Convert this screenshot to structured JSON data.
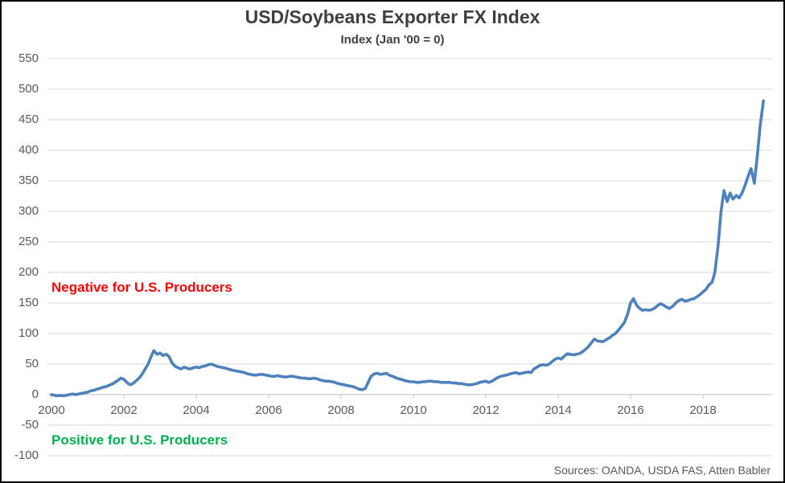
{
  "header": {
    "title": "USD/Soybeans Exporter FX Index",
    "subtitle": "Index (Jan '00 = 0)"
  },
  "annotations": {
    "negative": "Negative for U.S. Producers",
    "positive": "Positive for U.S. Producers"
  },
  "source": "Sources: OANDA, USDA FAS, Atten Babler",
  "colors": {
    "line": "#4F81BD",
    "negative_text": "#FF0000",
    "positive_text": "#00B050",
    "axis_text": "#595959",
    "gridline": "#D9D9D9",
    "axis_line": "#BFBFBF",
    "title_text": "#3F3F3F"
  },
  "chart_data": {
    "type": "line",
    "title": "USD/Soybeans Exporter FX Index",
    "subtitle": "Index (Jan '00 = 0)",
    "series_name": "USD/Soybeans Exporter FX Index",
    "xlabel": "",
    "ylabel": "",
    "grid": true,
    "legend": false,
    "xlim": [
      1999.9,
      2019.95
    ],
    "ylim": [
      -100,
      550
    ],
    "x_ticks": [
      2000,
      2002,
      2004,
      2006,
      2008,
      2010,
      2012,
      2014,
      2016,
      2018
    ],
    "y_ticks": [
      550,
      500,
      450,
      400,
      350,
      300,
      250,
      200,
      150,
      100,
      50,
      0,
      -50,
      -100
    ],
    "points": [
      [
        2000.0,
        0
      ],
      [
        2000.08,
        -1
      ],
      [
        2000.17,
        -2
      ],
      [
        2000.25,
        -1
      ],
      [
        2000.33,
        -2
      ],
      [
        2000.42,
        -1
      ],
      [
        2000.5,
        0
      ],
      [
        2000.58,
        1
      ],
      [
        2000.67,
        0
      ],
      [
        2000.75,
        1
      ],
      [
        2000.83,
        2
      ],
      [
        2000.92,
        3
      ],
      [
        2001.0,
        4
      ],
      [
        2001.08,
        6
      ],
      [
        2001.17,
        7
      ],
      [
        2001.25,
        9
      ],
      [
        2001.33,
        10
      ],
      [
        2001.42,
        12
      ],
      [
        2001.5,
        13
      ],
      [
        2001.58,
        15
      ],
      [
        2001.67,
        17
      ],
      [
        2001.75,
        20
      ],
      [
        2001.83,
        23
      ],
      [
        2001.92,
        27
      ],
      [
        2002.0,
        25
      ],
      [
        2002.08,
        20
      ],
      [
        2002.17,
        16
      ],
      [
        2002.25,
        18
      ],
      [
        2002.33,
        22
      ],
      [
        2002.42,
        27
      ],
      [
        2002.5,
        33
      ],
      [
        2002.58,
        41
      ],
      [
        2002.67,
        50
      ],
      [
        2002.75,
        62
      ],
      [
        2002.83,
        72
      ],
      [
        2002.92,
        66
      ],
      [
        2003.0,
        68
      ],
      [
        2003.08,
        64
      ],
      [
        2003.17,
        66
      ],
      [
        2003.25,
        62
      ],
      [
        2003.33,
        52
      ],
      [
        2003.42,
        46
      ],
      [
        2003.5,
        44
      ],
      [
        2003.58,
        42
      ],
      [
        2003.67,
        45
      ],
      [
        2003.75,
        43
      ],
      [
        2003.83,
        42
      ],
      [
        2003.92,
        44
      ],
      [
        2004.0,
        45
      ],
      [
        2004.08,
        44
      ],
      [
        2004.17,
        46
      ],
      [
        2004.25,
        47
      ],
      [
        2004.33,
        49
      ],
      [
        2004.42,
        50
      ],
      [
        2004.5,
        48
      ],
      [
        2004.58,
        46
      ],
      [
        2004.67,
        45
      ],
      [
        2004.75,
        44
      ],
      [
        2004.83,
        43
      ],
      [
        2004.92,
        41
      ],
      [
        2005.0,
        40
      ],
      [
        2005.08,
        39
      ],
      [
        2005.17,
        38
      ],
      [
        2005.25,
        37
      ],
      [
        2005.33,
        36
      ],
      [
        2005.42,
        34
      ],
      [
        2005.5,
        33
      ],
      [
        2005.58,
        32
      ],
      [
        2005.67,
        32
      ],
      [
        2005.75,
        33
      ],
      [
        2005.83,
        33
      ],
      [
        2005.92,
        32
      ],
      [
        2006.0,
        31
      ],
      [
        2006.08,
        30
      ],
      [
        2006.17,
        30
      ],
      [
        2006.25,
        31
      ],
      [
        2006.33,
        30
      ],
      [
        2006.42,
        29
      ],
      [
        2006.5,
        29
      ],
      [
        2006.58,
        30
      ],
      [
        2006.67,
        30
      ],
      [
        2006.75,
        29
      ],
      [
        2006.83,
        28
      ],
      [
        2006.92,
        27
      ],
      [
        2007.0,
        27
      ],
      [
        2007.08,
        26
      ],
      [
        2007.17,
        26
      ],
      [
        2007.25,
        27
      ],
      [
        2007.33,
        26
      ],
      [
        2007.42,
        24
      ],
      [
        2007.5,
        23
      ],
      [
        2007.58,
        22
      ],
      [
        2007.67,
        22
      ],
      [
        2007.75,
        21
      ],
      [
        2007.83,
        20
      ],
      [
        2007.92,
        18
      ],
      [
        2008.0,
        17
      ],
      [
        2008.08,
        16
      ],
      [
        2008.17,
        15
      ],
      [
        2008.25,
        14
      ],
      [
        2008.33,
        13
      ],
      [
        2008.42,
        11
      ],
      [
        2008.5,
        9
      ],
      [
        2008.58,
        8
      ],
      [
        2008.67,
        10
      ],
      [
        2008.75,
        20
      ],
      [
        2008.83,
        30
      ],
      [
        2008.92,
        34
      ],
      [
        2009.0,
        35
      ],
      [
        2009.08,
        33
      ],
      [
        2009.17,
        34
      ],
      [
        2009.25,
        35
      ],
      [
        2009.33,
        32
      ],
      [
        2009.42,
        30
      ],
      [
        2009.5,
        28
      ],
      [
        2009.58,
        26
      ],
      [
        2009.67,
        25
      ],
      [
        2009.75,
        23
      ],
      [
        2009.83,
        22
      ],
      [
        2009.92,
        21
      ],
      [
        2010.0,
        21
      ],
      [
        2010.08,
        20
      ],
      [
        2010.17,
        20
      ],
      [
        2010.25,
        21
      ],
      [
        2010.33,
        21
      ],
      [
        2010.42,
        22
      ],
      [
        2010.5,
        22
      ],
      [
        2010.58,
        21
      ],
      [
        2010.67,
        21
      ],
      [
        2010.75,
        20
      ],
      [
        2010.83,
        20
      ],
      [
        2010.92,
        20
      ],
      [
        2011.0,
        20
      ],
      [
        2011.08,
        19
      ],
      [
        2011.17,
        19
      ],
      [
        2011.25,
        18
      ],
      [
        2011.33,
        18
      ],
      [
        2011.42,
        17
      ],
      [
        2011.5,
        16
      ],
      [
        2011.58,
        16
      ],
      [
        2011.67,
        17
      ],
      [
        2011.75,
        18
      ],
      [
        2011.83,
        20
      ],
      [
        2011.92,
        21
      ],
      [
        2012.0,
        22
      ],
      [
        2012.08,
        20
      ],
      [
        2012.17,
        22
      ],
      [
        2012.25,
        25
      ],
      [
        2012.33,
        28
      ],
      [
        2012.42,
        30
      ],
      [
        2012.5,
        31
      ],
      [
        2012.58,
        32
      ],
      [
        2012.67,
        34
      ],
      [
        2012.75,
        35
      ],
      [
        2012.83,
        36
      ],
      [
        2012.92,
        34
      ],
      [
        2013.0,
        35
      ],
      [
        2013.08,
        36
      ],
      [
        2013.17,
        37
      ],
      [
        2013.25,
        36
      ],
      [
        2013.33,
        42
      ],
      [
        2013.42,
        45
      ],
      [
        2013.5,
        48
      ],
      [
        2013.58,
        49
      ],
      [
        2013.67,
        48
      ],
      [
        2013.75,
        50
      ],
      [
        2013.83,
        54
      ],
      [
        2013.92,
        58
      ],
      [
        2014.0,
        60
      ],
      [
        2014.08,
        58
      ],
      [
        2014.17,
        63
      ],
      [
        2014.25,
        67
      ],
      [
        2014.33,
        66
      ],
      [
        2014.42,
        65
      ],
      [
        2014.5,
        66
      ],
      [
        2014.58,
        67
      ],
      [
        2014.67,
        70
      ],
      [
        2014.75,
        74
      ],
      [
        2014.83,
        78
      ],
      [
        2014.92,
        85
      ],
      [
        2015.0,
        91
      ],
      [
        2015.08,
        88
      ],
      [
        2015.17,
        87
      ],
      [
        2015.25,
        87
      ],
      [
        2015.33,
        90
      ],
      [
        2015.42,
        93
      ],
      [
        2015.5,
        97
      ],
      [
        2015.58,
        100
      ],
      [
        2015.67,
        106
      ],
      [
        2015.75,
        112
      ],
      [
        2015.83,
        118
      ],
      [
        2015.92,
        132
      ],
      [
        2016.0,
        150
      ],
      [
        2016.08,
        157
      ],
      [
        2016.17,
        146
      ],
      [
        2016.25,
        141
      ],
      [
        2016.33,
        138
      ],
      [
        2016.42,
        139
      ],
      [
        2016.5,
        138
      ],
      [
        2016.58,
        139
      ],
      [
        2016.67,
        142
      ],
      [
        2016.75,
        146
      ],
      [
        2016.83,
        149
      ],
      [
        2016.92,
        146
      ],
      [
        2017.0,
        143
      ],
      [
        2017.08,
        141
      ],
      [
        2017.17,
        145
      ],
      [
        2017.25,
        150
      ],
      [
        2017.33,
        154
      ],
      [
        2017.42,
        156
      ],
      [
        2017.5,
        153
      ],
      [
        2017.58,
        154
      ],
      [
        2017.67,
        156
      ],
      [
        2017.75,
        157
      ],
      [
        2017.83,
        160
      ],
      [
        2017.92,
        164
      ],
      [
        2018.0,
        168
      ],
      [
        2018.08,
        172
      ],
      [
        2018.17,
        180
      ],
      [
        2018.25,
        184
      ],
      [
        2018.33,
        200
      ],
      [
        2018.42,
        245
      ],
      [
        2018.5,
        300
      ],
      [
        2018.58,
        334
      ],
      [
        2018.67,
        316
      ],
      [
        2018.75,
        330
      ],
      [
        2018.83,
        320
      ],
      [
        2018.92,
        326
      ],
      [
        2019.0,
        322
      ],
      [
        2019.08,
        330
      ],
      [
        2019.17,
        344
      ],
      [
        2019.25,
        358
      ],
      [
        2019.33,
        370
      ],
      [
        2019.42,
        346
      ],
      [
        2019.5,
        390
      ],
      [
        2019.58,
        440
      ],
      [
        2019.67,
        481
      ]
    ]
  }
}
